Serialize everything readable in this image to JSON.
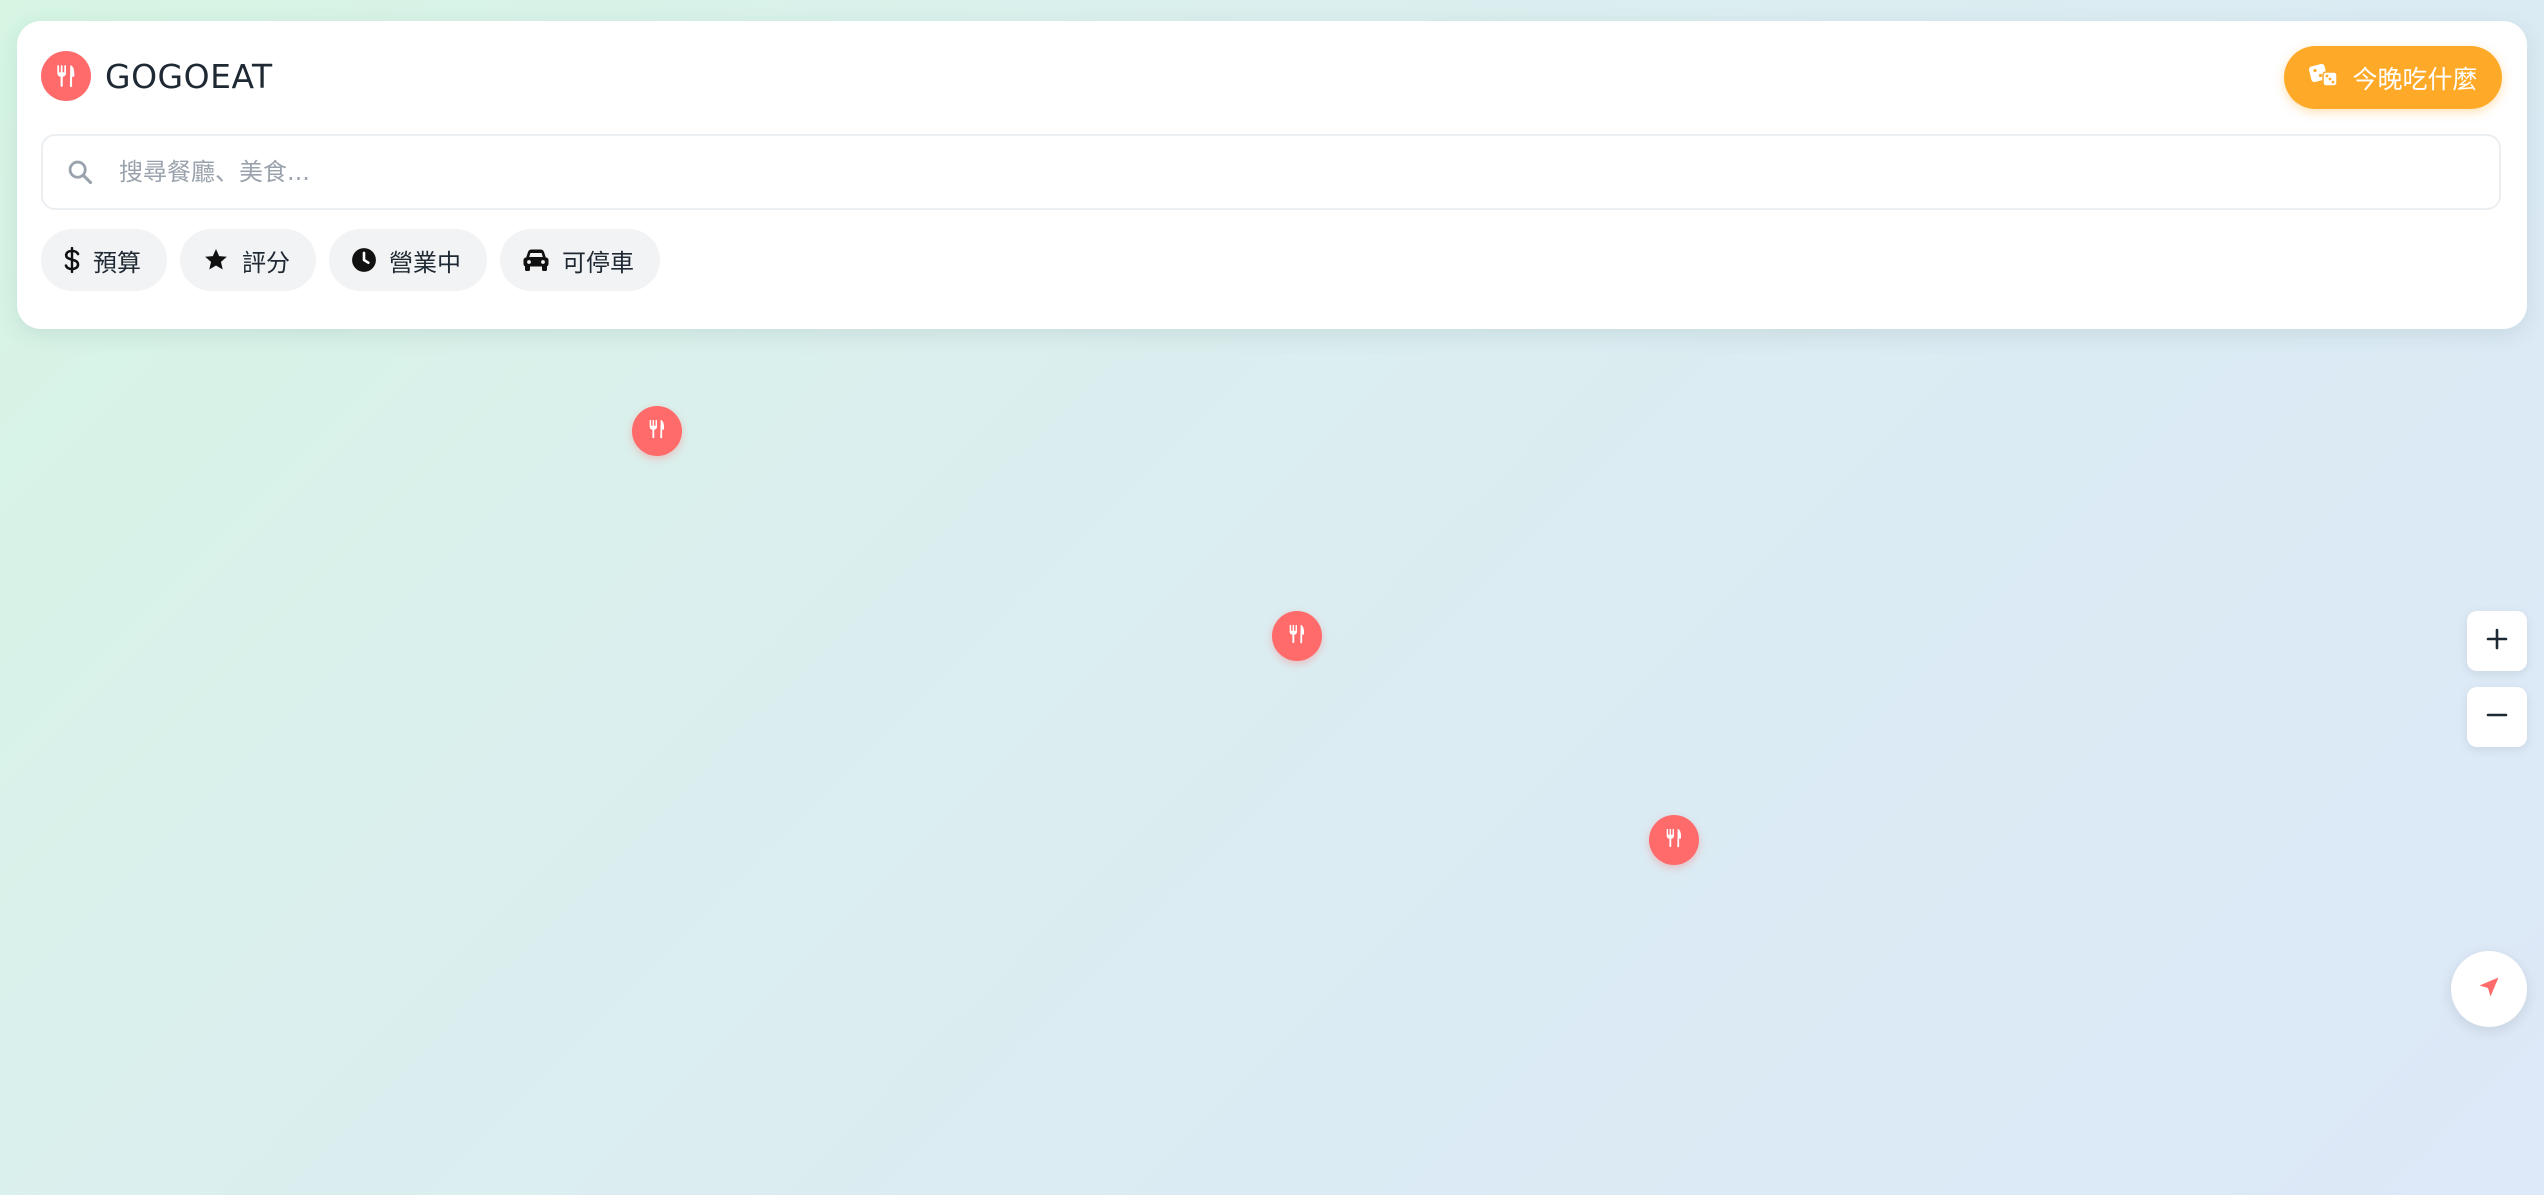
{
  "brand": {
    "name": "GOGOEAT",
    "logo_icon": "utensils-icon",
    "accent_color": "#ff6b6b"
  },
  "random_button": {
    "label": "今晚吃什麼",
    "icon": "dice-icon",
    "color": "#ffa928"
  },
  "search": {
    "placeholder": "搜尋餐廳、美食...",
    "value": "",
    "icon": "search-icon"
  },
  "filters": [
    {
      "label": "預算",
      "icon": "dollar-icon"
    },
    {
      "label": "評分",
      "icon": "star-icon"
    },
    {
      "label": "營業中",
      "icon": "clock-icon"
    },
    {
      "label": "可停車",
      "icon": "car-icon"
    }
  ],
  "map": {
    "markers": [
      {
        "icon": "utensils-icon"
      },
      {
        "icon": "utensils-icon"
      },
      {
        "icon": "utensils-icon"
      }
    ],
    "zoom_in_icon": "plus-icon",
    "zoom_out_icon": "minus-icon",
    "locate_icon": "location-arrow-icon"
  }
}
